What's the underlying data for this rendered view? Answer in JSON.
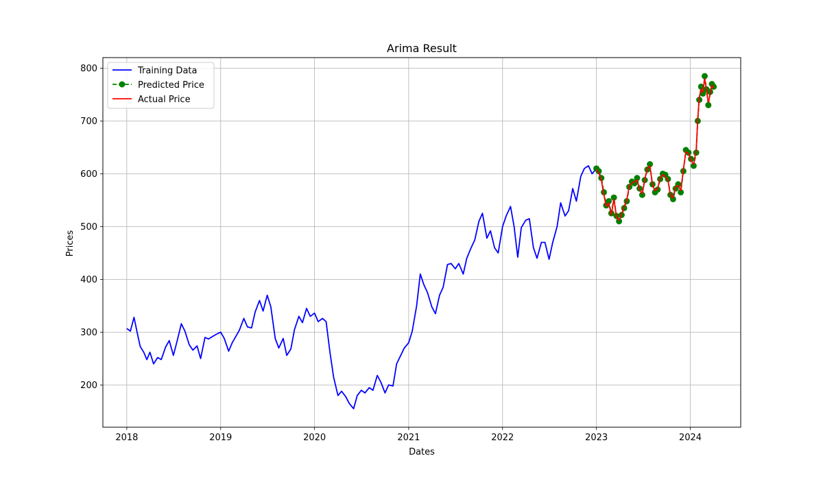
{
  "chart_data": {
    "type": "line",
    "title": "Arima Result",
    "xlabel": "Dates",
    "ylabel": "Prices",
    "xlim": [
      "2017-09-30",
      "2024-07-15"
    ],
    "ylim": [
      120,
      820
    ],
    "xticks": [
      "2018",
      "2019",
      "2020",
      "2021",
      "2022",
      "2023",
      "2024"
    ],
    "yticks": [
      200,
      300,
      400,
      500,
      600,
      700,
      800
    ],
    "grid": true,
    "legend_position": "top-left",
    "series": [
      {
        "name": "Training Data",
        "color": "#0000ff",
        "style": "solid",
        "points": [
          [
            "2018-01-01",
            307
          ],
          [
            "2018-01-15",
            302
          ],
          [
            "2018-01-29",
            328
          ],
          [
            "2018-02-10",
            300
          ],
          [
            "2018-02-22",
            273
          ],
          [
            "2018-03-08",
            262
          ],
          [
            "2018-03-20",
            248
          ],
          [
            "2018-04-01",
            262
          ],
          [
            "2018-04-15",
            240
          ],
          [
            "2018-05-01",
            252
          ],
          [
            "2018-05-15",
            248
          ],
          [
            "2018-06-01",
            272
          ],
          [
            "2018-06-15",
            284
          ],
          [
            "2018-07-01",
            256
          ],
          [
            "2018-07-15",
            282
          ],
          [
            "2018-08-01",
            316
          ],
          [
            "2018-08-15",
            302
          ],
          [
            "2018-09-01",
            276
          ],
          [
            "2018-09-15",
            266
          ],
          [
            "2018-10-01",
            274
          ],
          [
            "2018-10-15",
            250
          ],
          [
            "2018-11-01",
            290
          ],
          [
            "2018-11-15",
            287
          ],
          [
            "2018-12-01",
            292
          ],
          [
            "2018-12-15",
            296
          ],
          [
            "2019-01-01",
            300
          ],
          [
            "2019-01-15",
            288
          ],
          [
            "2019-02-01",
            264
          ],
          [
            "2019-02-15",
            280
          ],
          [
            "2019-03-01",
            292
          ],
          [
            "2019-03-15",
            304
          ],
          [
            "2019-04-01",
            326
          ],
          [
            "2019-04-15",
            310
          ],
          [
            "2019-05-01",
            308
          ],
          [
            "2019-05-15",
            338
          ],
          [
            "2019-06-01",
            360
          ],
          [
            "2019-06-15",
            340
          ],
          [
            "2019-07-01",
            370
          ],
          [
            "2019-07-15",
            348
          ],
          [
            "2019-08-01",
            288
          ],
          [
            "2019-08-15",
            270
          ],
          [
            "2019-09-01",
            288
          ],
          [
            "2019-09-15",
            256
          ],
          [
            "2019-10-01",
            268
          ],
          [
            "2019-10-15",
            305
          ],
          [
            "2019-11-01",
            330
          ],
          [
            "2019-11-15",
            318
          ],
          [
            "2019-12-01",
            345
          ],
          [
            "2019-12-15",
            330
          ],
          [
            "2020-01-01",
            336
          ],
          [
            "2020-01-15",
            320
          ],
          [
            "2020-02-01",
            326
          ],
          [
            "2020-02-15",
            320
          ],
          [
            "2020-03-01",
            262
          ],
          [
            "2020-03-15",
            215
          ],
          [
            "2020-04-01",
            180
          ],
          [
            "2020-04-15",
            188
          ],
          [
            "2020-05-01",
            178
          ],
          [
            "2020-05-15",
            165
          ],
          [
            "2020-06-01",
            155
          ],
          [
            "2020-06-15",
            180
          ],
          [
            "2020-07-01",
            190
          ],
          [
            "2020-07-15",
            185
          ],
          [
            "2020-08-01",
            195
          ],
          [
            "2020-08-15",
            190
          ],
          [
            "2020-09-01",
            218
          ],
          [
            "2020-09-15",
            205
          ],
          [
            "2020-10-01",
            185
          ],
          [
            "2020-10-15",
            200
          ],
          [
            "2020-11-01",
            198
          ],
          [
            "2020-11-15",
            240
          ],
          [
            "2020-12-01",
            256
          ],
          [
            "2020-12-15",
            270
          ],
          [
            "2021-01-01",
            280
          ],
          [
            "2021-01-15",
            302
          ],
          [
            "2021-02-01",
            350
          ],
          [
            "2021-02-15",
            410
          ],
          [
            "2021-03-01",
            390
          ],
          [
            "2021-03-15",
            375
          ],
          [
            "2021-04-01",
            348
          ],
          [
            "2021-04-15",
            335
          ],
          [
            "2021-05-01",
            370
          ],
          [
            "2021-05-15",
            385
          ],
          [
            "2021-06-01",
            428
          ],
          [
            "2021-06-15",
            430
          ],
          [
            "2021-07-01",
            420
          ],
          [
            "2021-07-15",
            430
          ],
          [
            "2021-08-01",
            410
          ],
          [
            "2021-08-15",
            440
          ],
          [
            "2021-09-01",
            460
          ],
          [
            "2021-09-15",
            475
          ],
          [
            "2021-10-01",
            510
          ],
          [
            "2021-10-15",
            525
          ],
          [
            "2021-11-01",
            478
          ],
          [
            "2021-11-15",
            492
          ],
          [
            "2021-12-01",
            460
          ],
          [
            "2021-12-15",
            450
          ],
          [
            "2022-01-01",
            500
          ],
          [
            "2022-01-15",
            520
          ],
          [
            "2022-02-01",
            538
          ],
          [
            "2022-02-15",
            500
          ],
          [
            "2022-03-01",
            442
          ],
          [
            "2022-03-15",
            498
          ],
          [
            "2022-04-01",
            512
          ],
          [
            "2022-04-15",
            515
          ],
          [
            "2022-05-01",
            460
          ],
          [
            "2022-05-15",
            440
          ],
          [
            "2022-06-01",
            470
          ],
          [
            "2022-06-15",
            470
          ],
          [
            "2022-07-01",
            438
          ],
          [
            "2022-07-15",
            470
          ],
          [
            "2022-08-01",
            500
          ],
          [
            "2022-08-15",
            545
          ],
          [
            "2022-09-01",
            520
          ],
          [
            "2022-09-15",
            530
          ],
          [
            "2022-10-01",
            572
          ],
          [
            "2022-10-15",
            548
          ],
          [
            "2022-11-01",
            595
          ],
          [
            "2022-11-15",
            610
          ],
          [
            "2022-12-01",
            615
          ],
          [
            "2022-12-15",
            600
          ],
          [
            "2023-01-01",
            610
          ]
        ]
      },
      {
        "name": "Predicted Price",
        "color": "#008000",
        "style": "dashed",
        "marker": "circle",
        "points": [
          [
            "2023-01-01",
            610
          ],
          [
            "2023-01-10",
            605
          ],
          [
            "2023-01-20",
            592
          ],
          [
            "2023-01-30",
            565
          ],
          [
            "2023-02-08",
            540
          ],
          [
            "2023-02-18",
            548
          ],
          [
            "2023-02-28",
            525
          ],
          [
            "2023-03-10",
            555
          ],
          [
            "2023-03-20",
            520
          ],
          [
            "2023-03-30",
            510
          ],
          [
            "2023-04-09",
            522
          ],
          [
            "2023-04-19",
            535
          ],
          [
            "2023-04-29",
            548
          ],
          [
            "2023-05-09",
            575
          ],
          [
            "2023-05-19",
            585
          ],
          [
            "2023-05-29",
            582
          ],
          [
            "2023-06-08",
            592
          ],
          [
            "2023-06-18",
            572
          ],
          [
            "2023-06-28",
            560
          ],
          [
            "2023-07-08",
            588
          ],
          [
            "2023-07-18",
            608
          ],
          [
            "2023-07-28",
            618
          ],
          [
            "2023-08-07",
            580
          ],
          [
            "2023-08-17",
            565
          ],
          [
            "2023-08-27",
            570
          ],
          [
            "2023-09-06",
            590
          ],
          [
            "2023-09-16",
            600
          ],
          [
            "2023-09-26",
            598
          ],
          [
            "2023-10-06",
            590
          ],
          [
            "2023-10-16",
            560
          ],
          [
            "2023-10-26",
            552
          ],
          [
            "2023-11-05",
            572
          ],
          [
            "2023-11-15",
            580
          ],
          [
            "2023-11-25",
            565
          ],
          [
            "2023-12-05",
            605
          ],
          [
            "2023-12-15",
            645
          ],
          [
            "2023-12-25",
            640
          ],
          [
            "2024-01-04",
            628
          ],
          [
            "2024-01-14",
            615
          ],
          [
            "2024-01-24",
            640
          ],
          [
            "2024-01-30",
            700
          ],
          [
            "2024-02-05",
            740
          ],
          [
            "2024-02-12",
            765
          ],
          [
            "2024-02-19",
            752
          ],
          [
            "2024-02-26",
            785
          ],
          [
            "2024-03-04",
            760
          ],
          [
            "2024-03-11",
            730
          ],
          [
            "2024-03-18",
            755
          ],
          [
            "2024-03-25",
            770
          ],
          [
            "2024-04-01",
            765
          ]
        ]
      },
      {
        "name": "Actual Price",
        "color": "#ff0000",
        "style": "solid",
        "points": [
          [
            "2023-01-01",
            608
          ],
          [
            "2023-01-10",
            602
          ],
          [
            "2023-01-20",
            588
          ],
          [
            "2023-01-30",
            560
          ],
          [
            "2023-02-08",
            538
          ],
          [
            "2023-02-18",
            545
          ],
          [
            "2023-02-28",
            522
          ],
          [
            "2023-03-10",
            552
          ],
          [
            "2023-03-20",
            518
          ],
          [
            "2023-03-30",
            512
          ],
          [
            "2023-04-09",
            524
          ],
          [
            "2023-04-19",
            538
          ],
          [
            "2023-04-29",
            550
          ],
          [
            "2023-05-09",
            578
          ],
          [
            "2023-05-19",
            582
          ],
          [
            "2023-05-29",
            585
          ],
          [
            "2023-06-08",
            588
          ],
          [
            "2023-06-18",
            570
          ],
          [
            "2023-06-28",
            562
          ],
          [
            "2023-07-08",
            590
          ],
          [
            "2023-07-18",
            610
          ],
          [
            "2023-07-28",
            615
          ],
          [
            "2023-08-07",
            578
          ],
          [
            "2023-08-17",
            568
          ],
          [
            "2023-08-27",
            572
          ],
          [
            "2023-09-06",
            592
          ],
          [
            "2023-09-16",
            598
          ],
          [
            "2023-09-26",
            595
          ],
          [
            "2023-10-06",
            588
          ],
          [
            "2023-10-16",
            558
          ],
          [
            "2023-10-26",
            555
          ],
          [
            "2023-11-05",
            575
          ],
          [
            "2023-11-15",
            578
          ],
          [
            "2023-11-25",
            568
          ],
          [
            "2023-12-05",
            608
          ],
          [
            "2023-12-15",
            642
          ],
          [
            "2023-12-25",
            638
          ],
          [
            "2024-01-04",
            625
          ],
          [
            "2024-01-14",
            618
          ],
          [
            "2024-01-24",
            645
          ],
          [
            "2024-01-30",
            705
          ],
          [
            "2024-02-05",
            745
          ],
          [
            "2024-02-12",
            760
          ],
          [
            "2024-02-19",
            755
          ],
          [
            "2024-02-26",
            780
          ],
          [
            "2024-03-04",
            758
          ],
          [
            "2024-03-11",
            735
          ],
          [
            "2024-03-18",
            750
          ],
          [
            "2024-03-25",
            768
          ],
          [
            "2024-04-01",
            762
          ]
        ]
      }
    ]
  }
}
